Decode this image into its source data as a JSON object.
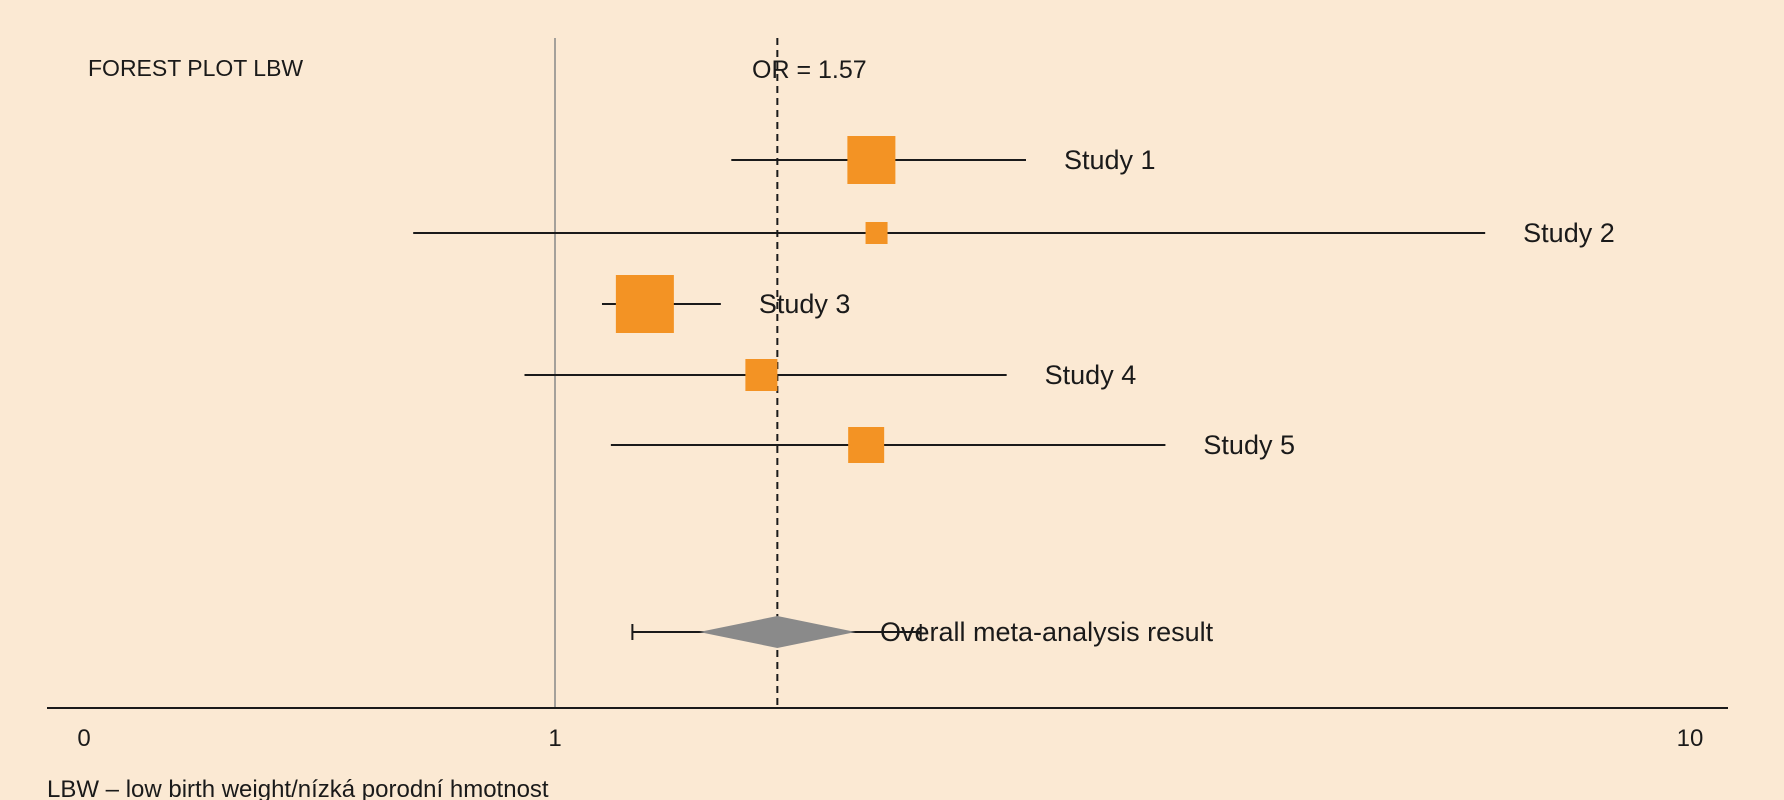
{
  "chart_data": {
    "type": "forest",
    "title": "FOREST PLOT LBW",
    "reference_line_label": "OR = 1.57",
    "pooled_or": 1.57,
    "null_line": 1,
    "x_axis": {
      "scale": "log-like",
      "ticks": [
        {
          "value": 0,
          "label": "0"
        },
        {
          "value": 1,
          "label": "1"
        },
        {
          "value": 10,
          "label": "10"
        }
      ]
    },
    "studies": [
      {
        "name": "Study 1",
        "or": 1.9,
        "ci_low": 1.43,
        "ci_high": 2.6,
        "weight": 48
      },
      {
        "name": "Study 2",
        "or": 1.92,
        "ci_low": 0.75,
        "ci_high": 6.6,
        "weight": 22
      },
      {
        "name": "Study 3",
        "or": 1.2,
        "ci_low": 1.1,
        "ci_high": 1.4,
        "weight": 58
      },
      {
        "name": "Study 4",
        "or": 1.52,
        "ci_low": 0.94,
        "ci_high": 2.5,
        "weight": 32
      },
      {
        "name": "Study 5",
        "or": 1.88,
        "ci_low": 1.12,
        "ci_high": 3.45,
        "weight": 36
      }
    ],
    "overall": {
      "name": "Overall meta-analysis result",
      "or": 1.57,
      "ci_low": 1.34,
      "ci_high": 1.84,
      "whisker_low": 1.17,
      "whisker_high": 2.1
    },
    "footnote": "LBW – low birth weight/nízká porodní hmotnost"
  },
  "colors": {
    "background": "#fbe9d3",
    "marker": "#f39324",
    "diamond": "#8a8a8a",
    "line": "#1a1a1a",
    "null_line": "#888888"
  }
}
